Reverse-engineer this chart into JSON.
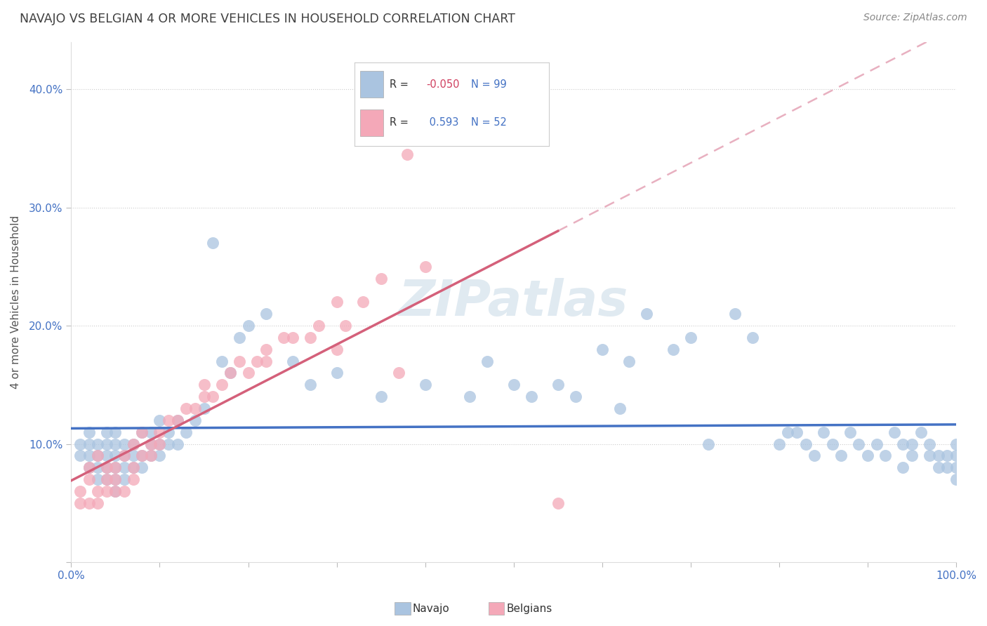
{
  "title": "NAVAJO VS BELGIAN 4 OR MORE VEHICLES IN HOUSEHOLD CORRELATION CHART",
  "source": "Source: ZipAtlas.com",
  "ylabel": "4 or more Vehicles in Household",
  "xlim": [
    0.0,
    1.0
  ],
  "ylim": [
    0.0,
    0.44
  ],
  "navajo_R": -0.05,
  "navajo_N": 99,
  "belgian_R": 0.593,
  "belgian_N": 52,
  "navajo_color": "#aac4e0",
  "belgian_color": "#f4a8b8",
  "navajo_line_color": "#4472c4",
  "belgian_line_color": "#d4607a",
  "belgian_dash_color": "#e8b0c0",
  "title_color": "#404040",
  "axis_label_color": "#4472c4",
  "watermark_color": "#ccdce8",
  "grid_color": "#cccccc",
  "navajo_x": [
    0.01,
    0.01,
    0.02,
    0.02,
    0.02,
    0.02,
    0.03,
    0.03,
    0.03,
    0.03,
    0.04,
    0.04,
    0.04,
    0.04,
    0.04,
    0.05,
    0.05,
    0.05,
    0.05,
    0.05,
    0.05,
    0.06,
    0.06,
    0.06,
    0.06,
    0.07,
    0.07,
    0.07,
    0.08,
    0.08,
    0.08,
    0.09,
    0.09,
    0.09,
    0.1,
    0.1,
    0.1,
    0.11,
    0.11,
    0.12,
    0.12,
    0.13,
    0.14,
    0.15,
    0.16,
    0.17,
    0.18,
    0.19,
    0.2,
    0.22,
    0.25,
    0.27,
    0.3,
    0.35,
    0.4,
    0.45,
    0.47,
    0.5,
    0.52,
    0.55,
    0.57,
    0.6,
    0.62,
    0.63,
    0.65,
    0.68,
    0.7,
    0.72,
    0.75,
    0.77,
    0.8,
    0.81,
    0.82,
    0.83,
    0.84,
    0.85,
    0.86,
    0.87,
    0.88,
    0.89,
    0.9,
    0.91,
    0.92,
    0.93,
    0.94,
    0.94,
    0.95,
    0.95,
    0.96,
    0.97,
    0.97,
    0.98,
    0.98,
    0.99,
    0.99,
    1.0,
    1.0,
    1.0,
    1.0
  ],
  "navajo_y": [
    0.09,
    0.1,
    0.08,
    0.09,
    0.1,
    0.11,
    0.07,
    0.08,
    0.09,
    0.1,
    0.07,
    0.08,
    0.09,
    0.1,
    0.11,
    0.06,
    0.07,
    0.08,
    0.09,
    0.1,
    0.11,
    0.07,
    0.08,
    0.09,
    0.1,
    0.08,
    0.09,
    0.1,
    0.08,
    0.09,
    0.11,
    0.09,
    0.1,
    0.11,
    0.09,
    0.1,
    0.12,
    0.1,
    0.11,
    0.1,
    0.12,
    0.11,
    0.12,
    0.13,
    0.27,
    0.17,
    0.16,
    0.19,
    0.2,
    0.21,
    0.17,
    0.15,
    0.16,
    0.14,
    0.15,
    0.14,
    0.17,
    0.15,
    0.14,
    0.15,
    0.14,
    0.18,
    0.13,
    0.17,
    0.21,
    0.18,
    0.19,
    0.1,
    0.21,
    0.19,
    0.1,
    0.11,
    0.11,
    0.1,
    0.09,
    0.11,
    0.1,
    0.09,
    0.11,
    0.1,
    0.09,
    0.1,
    0.09,
    0.11,
    0.1,
    0.08,
    0.09,
    0.1,
    0.11,
    0.09,
    0.1,
    0.08,
    0.09,
    0.08,
    0.09,
    0.07,
    0.08,
    0.09,
    0.1
  ],
  "belgian_x": [
    0.01,
    0.01,
    0.02,
    0.02,
    0.02,
    0.03,
    0.03,
    0.03,
    0.04,
    0.04,
    0.04,
    0.05,
    0.05,
    0.05,
    0.06,
    0.06,
    0.07,
    0.07,
    0.07,
    0.08,
    0.08,
    0.09,
    0.09,
    0.1,
    0.1,
    0.11,
    0.12,
    0.13,
    0.14,
    0.15,
    0.15,
    0.16,
    0.17,
    0.18,
    0.19,
    0.2,
    0.21,
    0.22,
    0.22,
    0.24,
    0.25,
    0.27,
    0.28,
    0.3,
    0.3,
    0.31,
    0.33,
    0.35,
    0.37,
    0.38,
    0.4,
    0.55
  ],
  "belgian_y": [
    0.05,
    0.06,
    0.05,
    0.07,
    0.08,
    0.05,
    0.06,
    0.09,
    0.06,
    0.07,
    0.08,
    0.06,
    0.07,
    0.08,
    0.06,
    0.09,
    0.07,
    0.08,
    0.1,
    0.09,
    0.11,
    0.09,
    0.1,
    0.1,
    0.11,
    0.12,
    0.12,
    0.13,
    0.13,
    0.14,
    0.15,
    0.14,
    0.15,
    0.16,
    0.17,
    0.16,
    0.17,
    0.17,
    0.18,
    0.19,
    0.19,
    0.19,
    0.2,
    0.22,
    0.18,
    0.2,
    0.22,
    0.24,
    0.16,
    0.345,
    0.25,
    0.05
  ]
}
